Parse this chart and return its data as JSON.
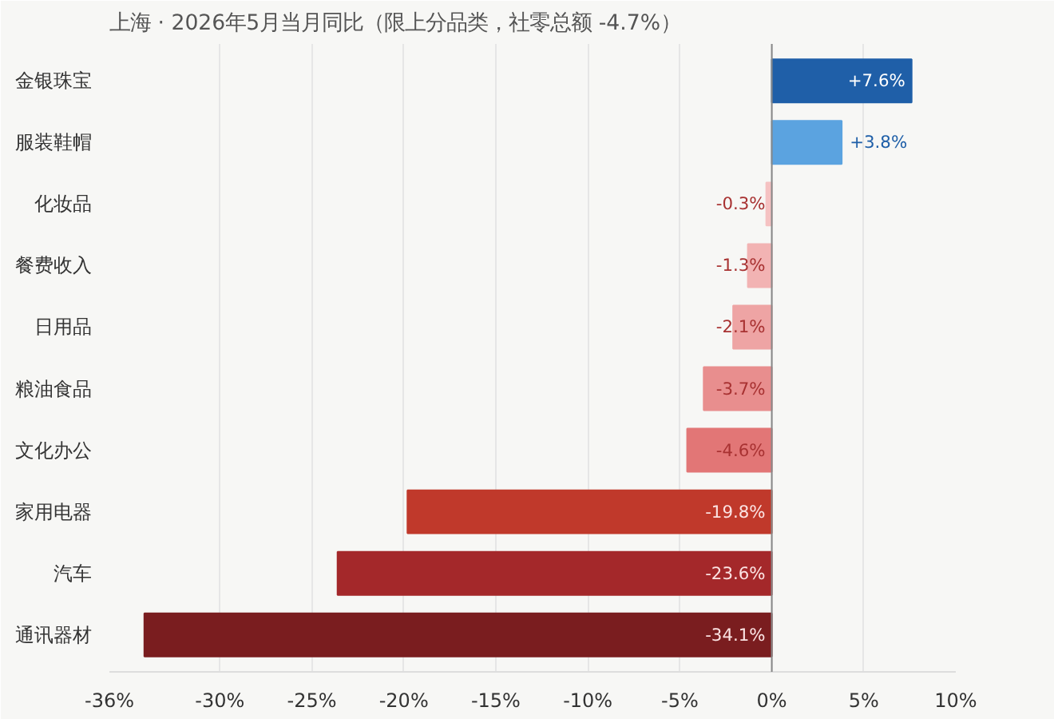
{
  "chart_data": {
    "type": "bar",
    "orientation": "horizontal",
    "title": "上海 · 2026年5月当月同比（限上分品类，社零总额 -4.7%）",
    "categories": [
      "金银珠宝",
      "服装鞋帽",
      "化妆品",
      "餐费收入",
      "日用品",
      "粮油食品",
      "文化办公",
      "家用电器",
      "汽车",
      "通讯器材"
    ],
    "values": [
      7.6,
      3.8,
      -0.3,
      -1.3,
      -2.1,
      -3.7,
      -4.6,
      -19.8,
      -23.6,
      -34.1
    ],
    "colors": [
      "#1f5fa8",
      "#5ba3e0",
      "#f5c2c2",
      "#f2b3b3",
      "#eea4a4",
      "#e88e8e",
      "#e27676",
      "#c0392b",
      "#a4282a",
      "#7a1d1f"
    ],
    "value_labels": [
      "+7.6%",
      "+3.8%",
      "-0.3%",
      "-1.3%",
      "-2.1%",
      "-3.7%",
      "-4.6%",
      "-19.8%",
      "-23.6%",
      "-34.1%"
    ],
    "xlim": [
      -36,
      10
    ],
    "xticks": [
      {
        "value": -36,
        "label": "-36%"
      },
      {
        "value": -30,
        "label": "-30%"
      },
      {
        "value": -25,
        "label": "-25%"
      },
      {
        "value": -20,
        "label": "-20%"
      },
      {
        "value": -15,
        "label": "-15%"
      },
      {
        "value": -10,
        "label": "-10%"
      },
      {
        "value": -5,
        "label": "-5%"
      },
      {
        "value": 0,
        "label": "0%"
      },
      {
        "value": 5,
        "label": "5%"
      },
      {
        "value": 10,
        "label": "10%"
      }
    ],
    "grid": "x"
  }
}
